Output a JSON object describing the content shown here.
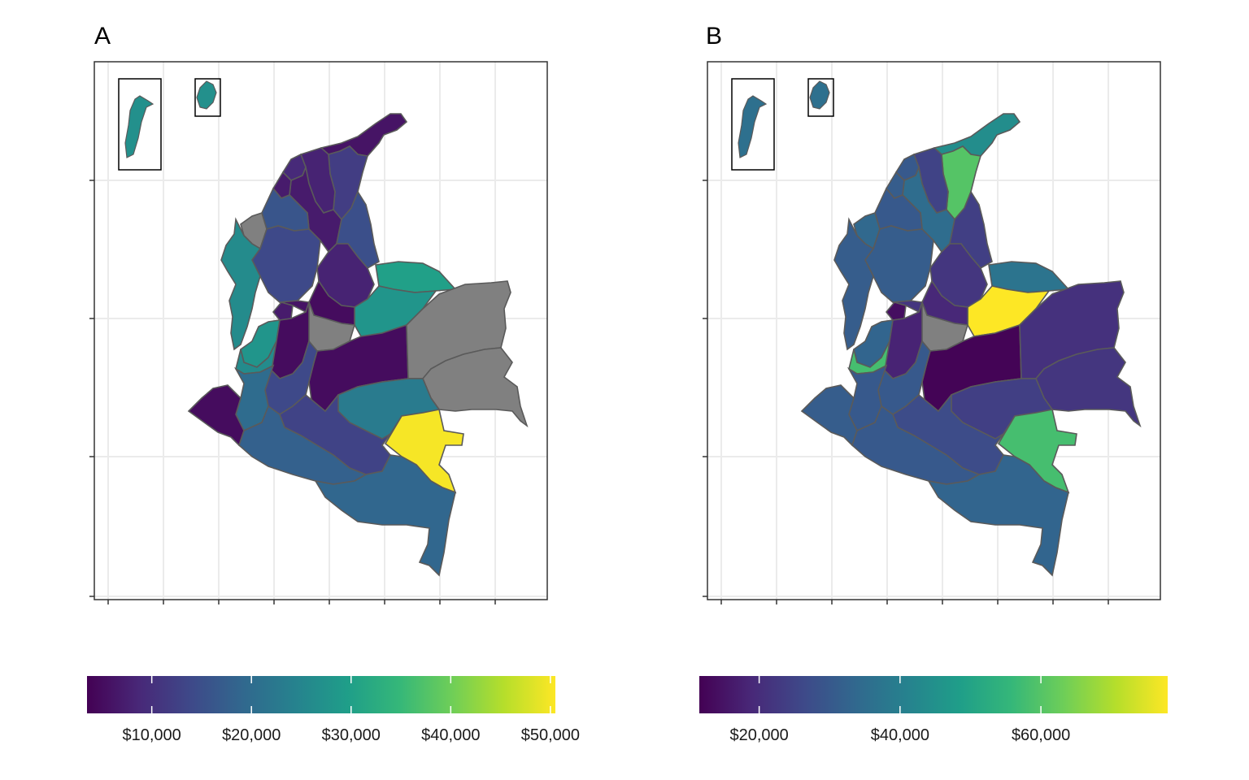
{
  "panels": [
    {
      "tag": "A",
      "legend": {
        "labels": [
          "$10,000",
          "$20,000",
          "$30,000",
          "$40,000",
          "$50,000"
        ],
        "min_value": 3500,
        "max_value": 50500,
        "tick_values": [
          10000,
          20000,
          30000,
          40000,
          50000
        ]
      }
    },
    {
      "tag": "B",
      "legend": {
        "labels": [
          "$20,000",
          "$40,000",
          "$60,000"
        ],
        "min_value": 11500,
        "max_value": 78000,
        "tick_values": [
          20000,
          40000,
          60000
        ]
      }
    }
  ],
  "colors": {
    "viridis": [
      "#440154",
      "#482878",
      "#3e4989",
      "#31688e",
      "#26828e",
      "#1f9e89",
      "#35b779",
      "#6ece58",
      "#b5de2b",
      "#fde725"
    ],
    "missing": "#808080",
    "region_border": "#5a5a5a",
    "grid": "#ebebeb",
    "frame": "#333333"
  },
  "chart_data": {
    "type": "choropleth",
    "note_values_estimated_from_color": true,
    "regions_A": {
      "la_guajira": 6000,
      "cesar": 12000,
      "magdalena": 8000,
      "atlantico": 9000,
      "bolivar": 7000,
      "sucre": 7000,
      "cordoba": 16000,
      "antioquia_north": 13000,
      "antioquia": 14000,
      "norte_santander": 15000,
      "santander": 8000,
      "arauca": 30000,
      "casanare": 28000,
      "boyaca": 5000,
      "choco": 26000,
      "risaralda": 7000,
      "caldas": 6000,
      "quindio": 28000,
      "valle": 26000,
      "tolima": 5000,
      "cundinamarca": null,
      "vichada": null,
      "meta": 5000,
      "huila": 14000,
      "cauca": 20000,
      "narino": 5000,
      "caqueta": 13000,
      "guaviare": 23000,
      "guainia": 50000,
      "putumayo": 18000,
      "amazonas": 19000,
      "vaupes": null,
      "san_andres": 27000,
      "providencia": 27000,
      "antioquia_uraba": null
    },
    "regions_B": {
      "la_guajira": 44000,
      "cesar": 60000,
      "magdalena": 25000,
      "atlantico": 30000,
      "bolivar": 35000,
      "sucre": 31000,
      "cordoba": 30000,
      "antioquia_north": 33000,
      "antioquia": 31000,
      "norte_santander": 24000,
      "santander": 22000,
      "arauca": 37000,
      "casanare": 78000,
      "boyaca": 19000,
      "choco": 31000,
      "risaralda": 14000,
      "caldas": 22000,
      "quindio": 33000,
      "valle": 58000,
      "tolima": 18000,
      "cundinamarca": null,
      "vichada": 21000,
      "meta": 12000,
      "huila": 30000,
      "cauca": 30000,
      "narino": 31000,
      "caqueta": 27000,
      "guaviare": 24000,
      "guainia": 58000,
      "putumayo": 30000,
      "amazonas": 33000,
      "vaupes": 22000,
      "san_andres": 36000,
      "providencia": 36000,
      "antioquia_uraba": 34000
    }
  }
}
